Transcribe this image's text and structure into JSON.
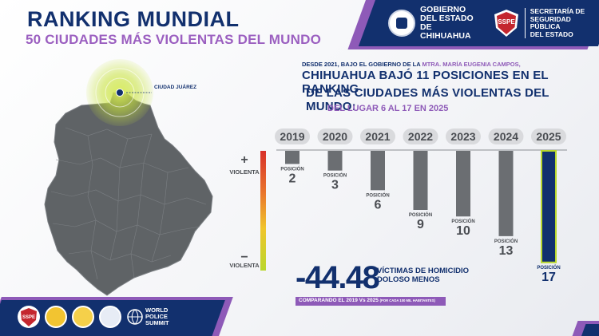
{
  "header": {
    "title": "RANKING MUNDIAL",
    "subtitle": "50 CIUDADES MÁS VIOLENTAS DEL MUNDO",
    "gov_logo_text": [
      "GOBIERNO",
      "DEL ESTADO",
      "DE CHIHUAHUA"
    ],
    "ssp_badge_text": "SSPE",
    "ssp_text": [
      "SECRETARÍA DE",
      "SEGURIDAD PÚBLICA",
      "DEL ESTADO"
    ]
  },
  "map": {
    "city_label": "CIUDAD JUÁREZ",
    "map_color": "#5f6366",
    "pulse_color": "#c7e23a"
  },
  "headline": {
    "line1_prefix": "DESDE 2021, BAJO EL GOBIERNO DE LA ",
    "line1_name": "MTRA. MARÍA EUGENIA CAMPOS,",
    "line2": "CHIHUAHUA BAJÓ 11 POSICIONES EN EL RANKING",
    "line3": "DE LAS CIUDADES MÁS VIOLENTAS DEL MUNDO:",
    "line4": "DEL LUGAR 6 AL 17 EN 2025"
  },
  "chart_data": {
    "type": "bar",
    "categories": [
      "2019",
      "2020",
      "2021",
      "2022",
      "2023",
      "2024",
      "2025"
    ],
    "values": [
      2,
      3,
      6,
      9,
      10,
      13,
      17
    ],
    "value_prefix": "POSICIÓN",
    "axis_top_label": "VIOLENTA",
    "axis_bottom_label": "VIOLENTA",
    "axis_top_symbol": "+",
    "axis_bottom_symbol": "−",
    "bar_color": "#6b6e72",
    "highlight_color": "#12306e",
    "highlight_outline": "#b9d72c",
    "year_pill_color": "#d9dadd"
  },
  "stat": {
    "value": "-44.48",
    "label": "VÍCTIMAS DE HOMICIDIO DOLOSO MENOS",
    "compare_main": "COMPARANDO EL 2019 Vs 2025",
    "compare_note": "(POR CADA 100 MIL HABITANTES)"
  },
  "footer": {
    "logos": [
      "sspe-logo",
      "cdeo-logo",
      "cdeo-logo",
      "seal-logo"
    ],
    "wps_text": [
      "WORLD",
      "POLICE",
      "SUMMIT"
    ]
  },
  "colors": {
    "navy": "#12306e",
    "purple": "#8e5ab8",
    "lime": "#b9d72c",
    "red": "#d8302a"
  }
}
